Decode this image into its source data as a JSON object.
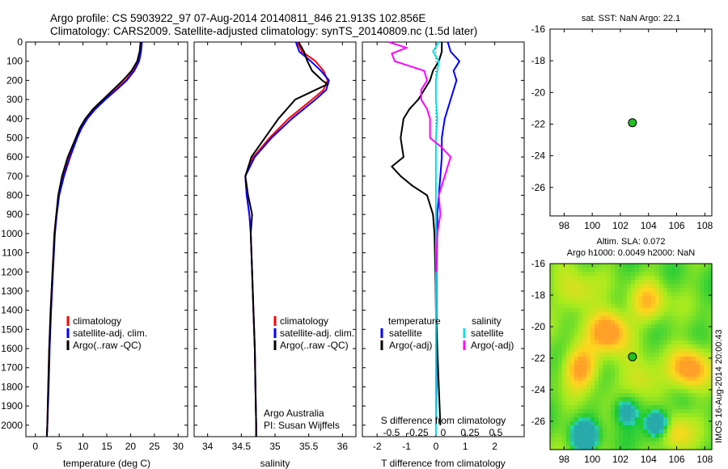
{
  "header": {
    "line1": "Argo profile: CS 5903922_97 07-Aug-2014 20140811_846 21.913S 102.856E",
    "line2": "Climatology: CARS2009. Satellite-adjusted climatology: synTS_20140809.nc (1.5d later)"
  },
  "side_label": "IMOS 16-Aug-2014 20:00:43",
  "colors": {
    "climatology": "#ff0000",
    "satellite": "#0000ff",
    "argo": "#000000",
    "salinity_sat": "#00e0e0",
    "salinity_argo": "#ff00ff"
  },
  "chart_data": [
    {
      "type": "line",
      "xlabel": "temperature (deg C)",
      "ylim": [
        2060,
        0
      ],
      "xlim": [
        -2,
        32
      ],
      "xticks": [
        0,
        5,
        10,
        15,
        20,
        25,
        30
      ],
      "yticks": [
        0,
        100,
        200,
        300,
        400,
        500,
        600,
        700,
        800,
        900,
        1000,
        1100,
        1200,
        1300,
        1400,
        1500,
        1600,
        1700,
        1800,
        1900,
        2000
      ],
      "legend": [
        "climatology",
        "satellite-adj. clim.",
        "Argo(..raw -QC)"
      ],
      "series": [
        {
          "name": "climatology",
          "color": "climatology",
          "depth": [
            0,
            50,
            100,
            150,
            200,
            250,
            300,
            350,
            400,
            450,
            500,
            600,
            700,
            800,
            900,
            1000,
            1200,
            1400,
            1600,
            1800,
            2000,
            2060
          ],
          "values": [
            22.2,
            22.0,
            21.6,
            20.6,
            19.0,
            16.8,
            14.4,
            12.3,
            10.7,
            9.5,
            8.6,
            7.1,
            5.9,
            4.9,
            4.4,
            4.0,
            3.6,
            3.2,
            2.9,
            2.7,
            2.5,
            2.4
          ]
        },
        {
          "name": "satellite-adj. clim.",
          "color": "satellite",
          "depth": [
            0,
            50,
            100,
            150,
            200,
            250,
            300,
            350,
            400,
            450,
            500,
            600,
            700,
            800,
            900,
            1000,
            1200,
            1400,
            1600,
            1800,
            2000,
            2060
          ],
          "values": [
            22.4,
            22.2,
            21.8,
            20.8,
            19.2,
            17.0,
            14.7,
            12.6,
            10.9,
            9.7,
            8.8,
            7.3,
            6.0,
            5.0,
            4.5,
            4.1,
            3.7,
            3.3,
            3.0,
            2.8,
            2.5,
            2.4
          ]
        },
        {
          "name": "Argo(..raw -QC)",
          "color": "argo",
          "depth": [
            0,
            50,
            100,
            150,
            200,
            250,
            300,
            350,
            400,
            450,
            500,
            600,
            700,
            800,
            900,
            1000,
            1200,
            1400,
            1600,
            1800,
            2000,
            2060
          ],
          "values": [
            22.1,
            21.9,
            21.4,
            20.2,
            18.4,
            16.3,
            14.2,
            12.1,
            10.5,
            9.3,
            8.5,
            6.8,
            5.6,
            4.8,
            4.4,
            4.0,
            3.6,
            3.2,
            2.9,
            2.7,
            2.5,
            2.4
          ]
        }
      ]
    },
    {
      "type": "line",
      "xlabel": "salinity",
      "ylim": [
        2060,
        0
      ],
      "xlim": [
        33.8,
        36.2
      ],
      "xticks": [
        34,
        34.5,
        35,
        35.5,
        36
      ],
      "legend": [
        "climatology",
        "satellite-adj. clim.",
        "Argo(..raw -QC)"
      ],
      "annotation": [
        "Argo Australia",
        "PI: Susan Wijffels"
      ],
      "series": [
        {
          "name": "climatology",
          "color": "climatology",
          "depth": [
            0,
            50,
            100,
            150,
            200,
            250,
            300,
            400,
            500,
            600,
            700,
            800,
            900,
            1000,
            1200,
            1400,
            1600,
            1800,
            2000,
            2060
          ],
          "values": [
            35.33,
            35.4,
            35.6,
            35.72,
            35.78,
            35.72,
            35.55,
            35.2,
            34.92,
            34.68,
            34.56,
            34.58,
            34.62,
            34.64,
            34.66,
            34.68,
            34.7,
            34.71,
            34.72,
            34.72
          ]
        },
        {
          "name": "satellite-adj. clim.",
          "color": "satellite",
          "depth": [
            0,
            50,
            100,
            150,
            200,
            250,
            300,
            400,
            500,
            600,
            700,
            800,
            900,
            1000,
            1200,
            1400,
            1600,
            1800,
            2000,
            2060
          ],
          "values": [
            35.31,
            35.36,
            35.53,
            35.68,
            35.8,
            35.76,
            35.6,
            35.25,
            34.95,
            34.7,
            34.56,
            34.58,
            34.62,
            34.64,
            34.66,
            34.68,
            34.7,
            34.71,
            34.72,
            34.72
          ]
        },
        {
          "name": "Argo(..raw -QC)",
          "color": "argo",
          "depth": [
            0,
            50,
            100,
            150,
            200,
            220,
            250,
            300,
            400,
            500,
            600,
            700,
            800,
            900,
            1000,
            1200,
            1400,
            1600,
            1800,
            2000,
            2060
          ],
          "values": [
            35.35,
            35.43,
            35.48,
            35.55,
            35.7,
            35.78,
            35.6,
            35.3,
            35.05,
            34.85,
            34.65,
            34.56,
            34.6,
            34.66,
            34.64,
            34.66,
            34.68,
            34.7,
            34.71,
            34.72,
            34.72
          ]
        }
      ]
    },
    {
      "type": "line",
      "xlabel": "T difference from climatology",
      "title_bottom": "S difference from climatology",
      "ylim": [
        2060,
        0
      ],
      "xlim": [
        -2.5,
        3
      ],
      "xticks": [
        -2,
        -1,
        0,
        1,
        2
      ],
      "s_ticks": [
        "-0.5",
        "-0.25",
        "0",
        "0.25",
        "0.5"
      ],
      "legend_temperature": [
        "temperature",
        "satellite",
        "Argo(-adj)"
      ],
      "legend_salinity": [
        "salinity",
        "satellite",
        "Argo(-adj)"
      ],
      "series": [
        {
          "name": "temperature satellite",
          "color": "satellite",
          "depth": [
            0,
            50,
            100,
            150,
            200,
            300,
            400,
            500,
            600,
            700,
            800,
            900,
            1000,
            1200,
            1400,
            1600,
            1800,
            2000
          ],
          "values": [
            0.4,
            0.5,
            0.8,
            0.6,
            0.7,
            0.5,
            0.3,
            0.2,
            0.2,
            0.15,
            0.1,
            0.05,
            0.05,
            0.02,
            0.02,
            0.02,
            0.02,
            0.0
          ]
        },
        {
          "name": "temperature Argo(-adj)",
          "color": "argo",
          "depth": [
            0,
            50,
            100,
            150,
            200,
            250,
            300,
            350,
            400,
            500,
            600,
            650,
            700,
            750,
            800,
            900,
            1000,
            1200,
            1400,
            1600,
            1800,
            2000
          ],
          "values": [
            0.2,
            0.2,
            0.1,
            -0.1,
            -0.2,
            -0.4,
            -0.6,
            -0.9,
            -1.1,
            -1.2,
            -1.1,
            -1.5,
            -1.2,
            -0.8,
            -0.3,
            -0.1,
            -0.05,
            -0.02,
            0.0,
            0.05,
            0.1,
            0.15
          ]
        },
        {
          "name": "salinity satellite",
          "color": "salinity_sat",
          "depth": [
            0,
            50,
            100,
            200,
            300,
            400,
            500,
            600,
            800,
            1000,
            1500,
            2000,
            2050
          ],
          "values": [
            0.1,
            -0.1,
            0.1,
            0.0,
            0.0,
            0.05,
            0.0,
            0.0,
            0.0,
            0.0,
            0.0,
            0.0,
            0.0
          ]
        },
        {
          "name": "salinity Argo(-adj)",
          "color": "salinity_argo",
          "depth": [
            0,
            30,
            60,
            100,
            150,
            200,
            250,
            300,
            350,
            400,
            500,
            550,
            600,
            700,
            800,
            900,
            1000,
            1200
          ],
          "values": [
            -1.6,
            -1.0,
            -1.5,
            -1.4,
            -0.4,
            -0.3,
            -0.5,
            -0.5,
            -0.3,
            -0.2,
            -0.2,
            0.2,
            0.5,
            0.3,
            0.1,
            0.15,
            0.05,
            0.0
          ]
        }
      ]
    },
    {
      "type": "scatter",
      "title": "sat. SST: NaN Argo: 22.1",
      "xlim": [
        97,
        108.5
      ],
      "ylim": [
        -27.8,
        -16
      ],
      "xticks": [
        98,
        100,
        102,
        104,
        106,
        108
      ],
      "yticks": [
        -16,
        -18,
        -20,
        -22,
        -24,
        -26
      ],
      "point": {
        "lon": 102.856,
        "lat": -21.913
      },
      "background": "blank"
    },
    {
      "type": "heatmap",
      "title_line1": "Altim. SLA: 0.072",
      "title_line2": "Argo h1000: 0.0049 h2000: NaN",
      "xlim": [
        97,
        108.5
      ],
      "ylim": [
        -27.8,
        -16
      ],
      "xticks": [
        98,
        100,
        102,
        104,
        106,
        108
      ],
      "yticks": [
        -16,
        -18,
        -20,
        -22,
        -24,
        -26
      ],
      "point": {
        "lon": 102.856,
        "lat": -21.913
      }
    }
  ]
}
